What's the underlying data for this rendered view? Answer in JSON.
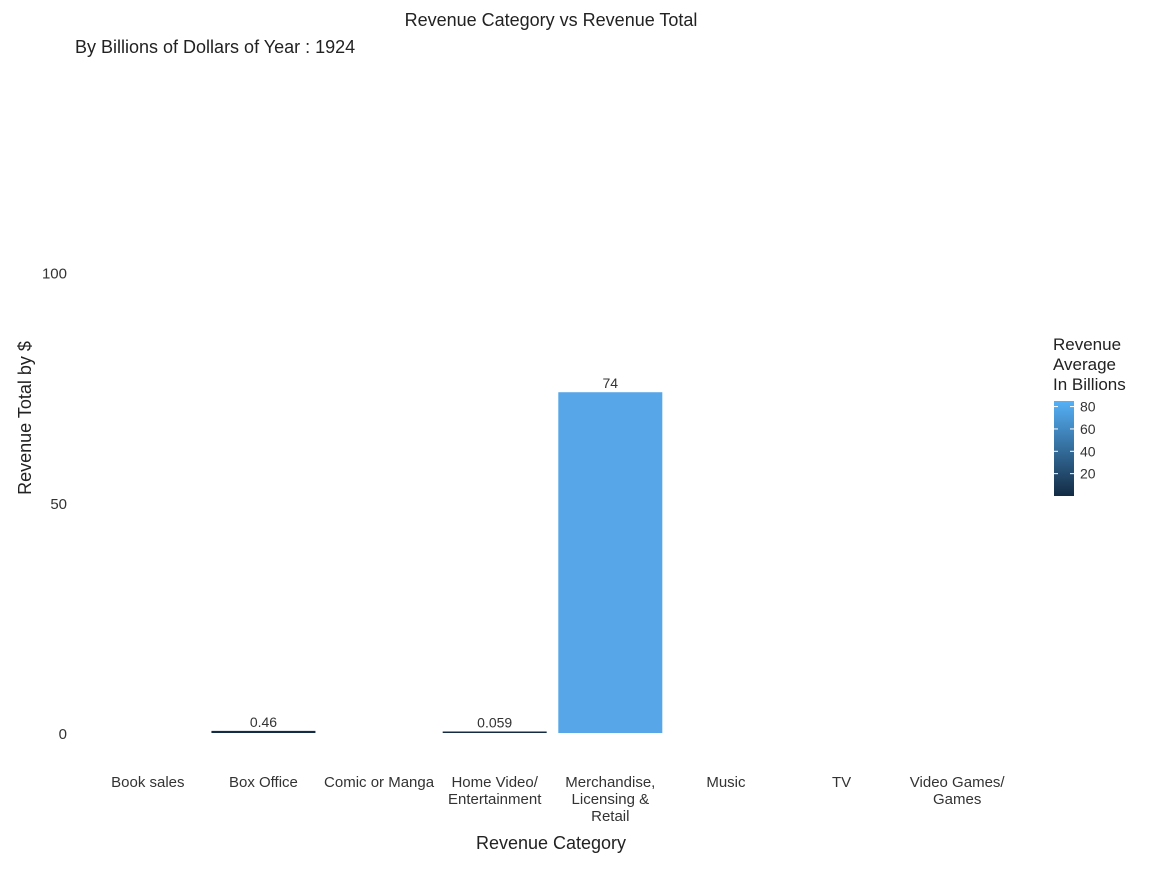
{
  "chart_data": {
    "type": "bar",
    "title": "Revenue Category vs Revenue Total",
    "subtitle": "By Billions of Dollars of Year : 1924",
    "xlabel": "Revenue Category",
    "ylabel": "Revenue Total by $",
    "categories": [
      "Book sales",
      "Box Office",
      "Comic or Manga",
      "Home Video/ Entertainment",
      "Merchandise, Licensing & Retail",
      "Music",
      "TV",
      "Video Games/ Games"
    ],
    "category_label_lines": [
      [
        "Book sales"
      ],
      [
        "Box Office"
      ],
      [
        "Comic or Manga"
      ],
      [
        "Home Video/",
        "Entertainment"
      ],
      [
        "Merchandise,",
        "Licensing &",
        "Retail"
      ],
      [
        "Music"
      ],
      [
        "TV"
      ],
      [
        "Video Games/",
        "Games"
      ]
    ],
    "values": [
      null,
      0.46,
      null,
      0.059,
      74,
      null,
      null,
      null
    ],
    "data_labels": [
      "",
      "0.46",
      "",
      "0.059",
      "74",
      "",
      "",
      ""
    ],
    "ylim": [
      0,
      140
    ],
    "yticks": [
      0,
      50,
      100
    ],
    "ytick_labels": [
      "0",
      "50",
      "100"
    ],
    "grid": false,
    "legend": {
      "title_lines": [
        "Revenue",
        "Average",
        "In Billions"
      ],
      "type": "colorbar",
      "range": [
        0,
        85
      ],
      "ticks": [
        20,
        40,
        60,
        80
      ],
      "tick_labels": [
        "20",
        "40",
        "60",
        "80"
      ],
      "color_low": "#132b43",
      "color_high": "#56b1f7",
      "position": "right"
    },
    "bar_colors": [
      "",
      "#132b43",
      "",
      "#132b43",
      "#56a6e8",
      "",
      "",
      ""
    ]
  }
}
